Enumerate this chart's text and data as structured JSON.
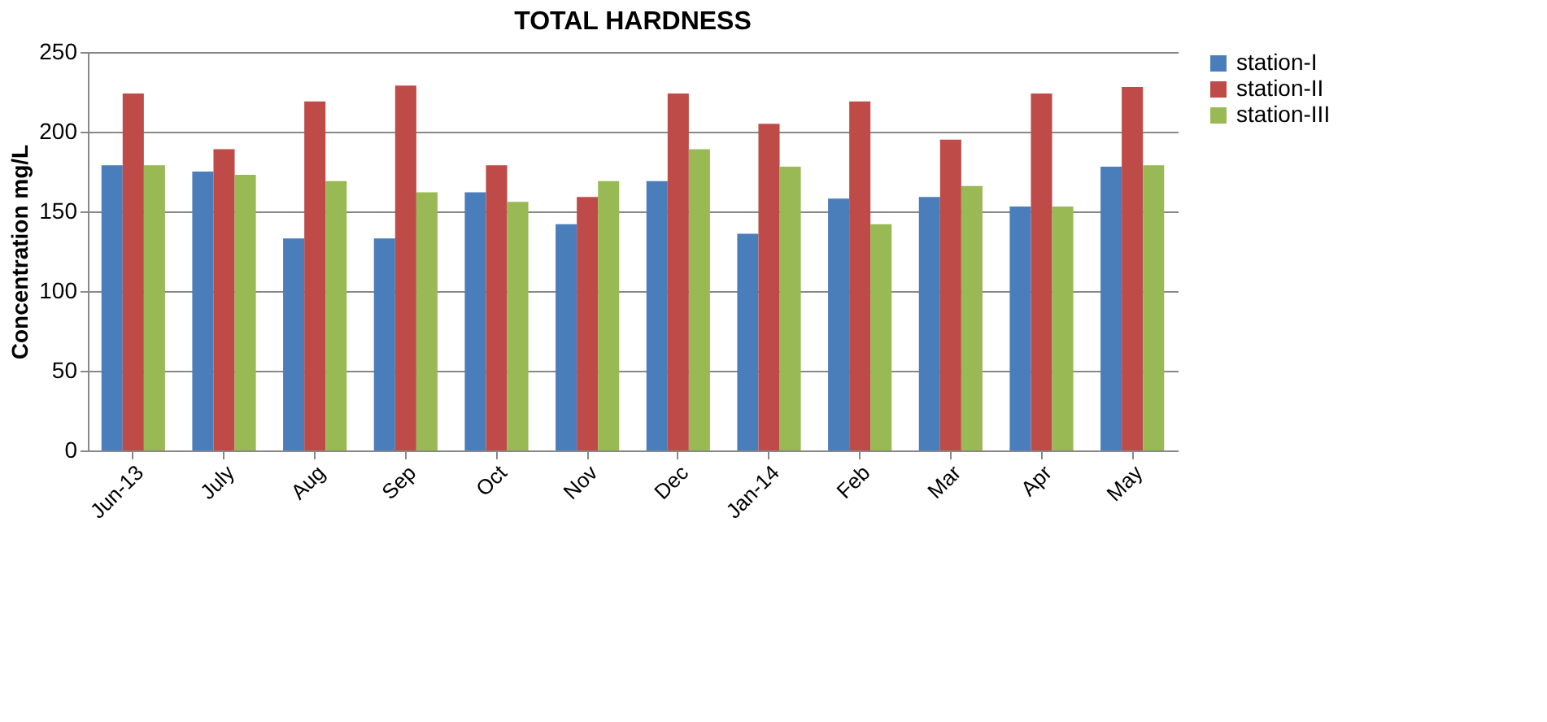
{
  "chart_data": {
    "type": "bar",
    "title": "TOTAL HARDNESS",
    "ylabel": "Concentration mg/L",
    "categories": [
      "Jun-13",
      "July",
      "Aug",
      "Sep",
      "Oct",
      "Nov",
      "Dec",
      "Jan-14",
      "Feb",
      "Mar",
      "Apr",
      "May"
    ],
    "series": [
      {
        "name": "station-I",
        "color": "#4a7ebb",
        "values": [
          179,
          175,
          133,
          133,
          162,
          142,
          169,
          136,
          158,
          159,
          153,
          178
        ]
      },
      {
        "name": "station-II",
        "color": "#be4b48",
        "values": [
          224,
          189,
          219,
          229,
          179,
          159,
          224,
          205,
          219,
          195,
          224,
          228
        ]
      },
      {
        "name": "station-III",
        "color": "#98b954",
        "values": [
          179,
          173,
          169,
          162,
          156,
          169,
          189,
          178,
          142,
          166,
          153,
          179
        ]
      }
    ],
    "ylim": [
      0,
      250
    ],
    "yticks": [
      0,
      50,
      100,
      150,
      200,
      250
    ],
    "grid": "y",
    "legend": "right"
  }
}
